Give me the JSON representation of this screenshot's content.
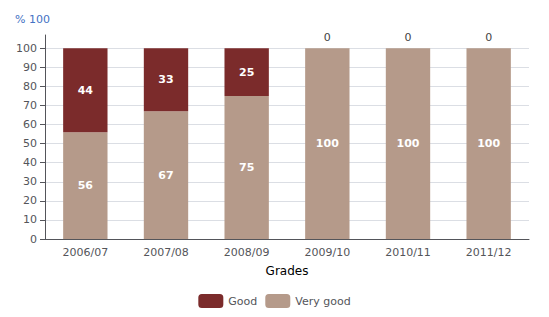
{
  "chart_data": {
    "type": "bar",
    "stacked": true,
    "xlabel": "Grades",
    "ylabel": "% 100",
    "categories": [
      "2006/07",
      "2007/08",
      "2008/09",
      "2009/10",
      "2010/11",
      "2011/12"
    ],
    "series": [
      {
        "name": "Very good",
        "color": "#B59A8A",
        "values": [
          56,
          67,
          75,
          100,
          100,
          100
        ]
      },
      {
        "name": "Good",
        "color": "#7B2B2B",
        "values": [
          44,
          33,
          25,
          0,
          0,
          0
        ]
      }
    ],
    "ylim": [
      0,
      107
    ],
    "yticks": [
      0,
      10,
      20,
      30,
      40,
      50,
      60,
      70,
      80,
      90,
      100
    ],
    "grid": true,
    "legend": "bottom",
    "data_labels": true
  }
}
